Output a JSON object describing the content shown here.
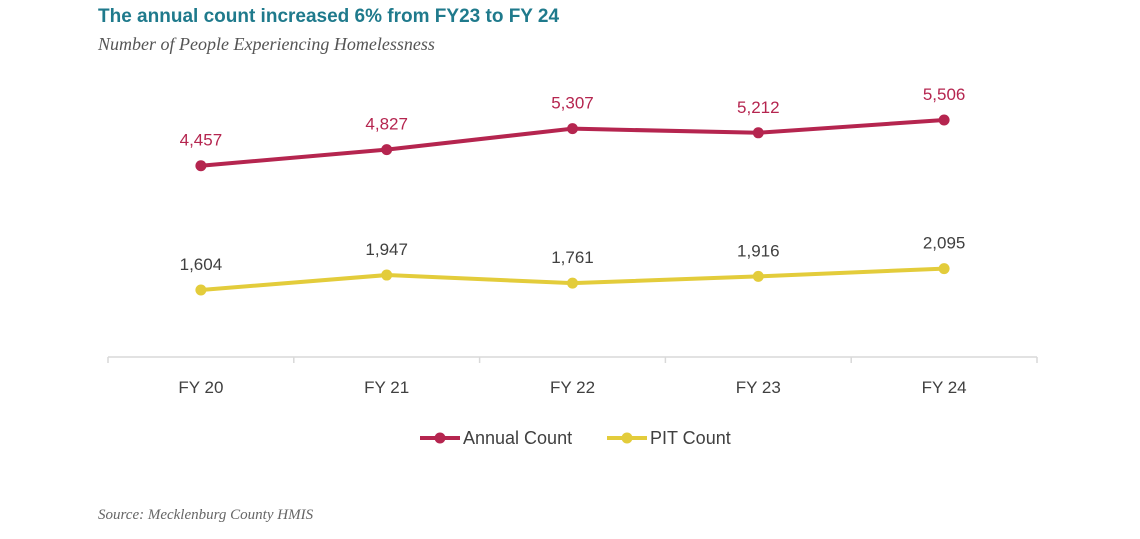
{
  "title": "The annual count increased 6% from FY23 to FY 24",
  "subtitle": "Number of People Experiencing Homelessness",
  "source": "Source: Mecklenburg County HMIS",
  "colors": {
    "title": "#1f7a8c",
    "annual": "#b5254f",
    "pit": "#e3cc3b",
    "axis": "#d9d9d9",
    "pit_label": "#404040"
  },
  "chart_data": {
    "type": "line",
    "title": "The annual count increased 6% from FY23 to FY 24",
    "subtitle": "Number of People Experiencing Homelessness",
    "xlabel": "",
    "ylabel": "",
    "categories": [
      "FY 20",
      "FY 21",
      "FY 22",
      "FY 23",
      "FY 24"
    ],
    "series": [
      {
        "name": "Annual Count",
        "values": [
          4457,
          4827,
          5307,
          5212,
          5506
        ],
        "labels": [
          "4,457",
          "4,827",
          "5,307",
          "5,212",
          "5,506"
        ]
      },
      {
        "name": "PIT Count",
        "values": [
          1604,
          1947,
          1761,
          1916,
          2095
        ],
        "labels": [
          "1,604",
          "1,947",
          "1,761",
          "1,916",
          "2,095"
        ]
      }
    ],
    "legend_position": "bottom",
    "grid": false
  }
}
